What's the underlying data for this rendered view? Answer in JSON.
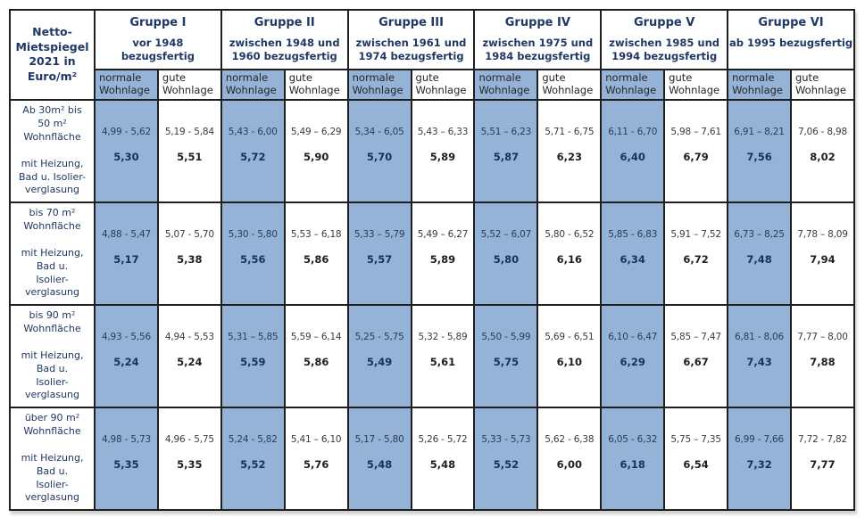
{
  "title": "Netto-\nMietspiegel\n2021 in\nEuro/m²",
  "colors": {
    "highlight_blue": "#95B3D7",
    "header_navy": "#1F3864",
    "border_black": "#1f1f1f",
    "background": "#ffffff"
  },
  "wohnlage_labels": {
    "normale": "normale\nWohnlage",
    "gute": "gute\nWohnlage"
  },
  "groups": [
    {
      "name": "Gruppe I",
      "period": "vor 1948 bezugsfertig"
    },
    {
      "name": "Gruppe II",
      "period": "zwischen 1948 und\n1960 bezugsfertig"
    },
    {
      "name": "Gruppe III",
      "period": "zwischen 1961 und\n1974 bezugsfertig"
    },
    {
      "name": "Gruppe IV",
      "period": "zwischen 1975 und\n1984 bezugsfertig"
    },
    {
      "name": "Gruppe V",
      "period": "zwischen 1985 und\n1994 bezugsfertig"
    },
    {
      "name": "Gruppe VI",
      "period": "ab 1995 bezugsfertig"
    }
  ],
  "rows": [
    {
      "label": "Ab 30m² bis\n50 m²\nWohnfläche\n\nmit Heizung,\nBad u. Isolier-\nverglasung",
      "cells": [
        {
          "range": "4,99 - 5,62",
          "mean": "5,30"
        },
        {
          "range": "5,19 - 5,84",
          "mean": "5,51"
        },
        {
          "range": "5,43 - 6,00",
          "mean": "5,72"
        },
        {
          "range": "5,49 – 6,29",
          "mean": "5,90"
        },
        {
          "range": "5,34 - 6,05",
          "mean": "5,70"
        },
        {
          "range": "5,43 – 6,33",
          "mean": "5,89"
        },
        {
          "range": "5,51 – 6,23",
          "mean": "5,87"
        },
        {
          "range": "5,71 - 6,75",
          "mean": "6,23"
        },
        {
          "range": "6,11 - 6,70",
          "mean": "6,40"
        },
        {
          "range": "5,98 – 7,61",
          "mean": "6,79"
        },
        {
          "range": "6,91 – 8,21",
          "mean": "7,56"
        },
        {
          "range": "7,06 - 8,98",
          "mean": "8,02"
        }
      ]
    },
    {
      "label": "bis 70 m²\nWohnfläche\n\nmit Heizung,\nBad u.\nIsolier-\nverglasung",
      "cells": [
        {
          "range": "4,88 - 5,47",
          "mean": "5,17"
        },
        {
          "range": "5,07 - 5,70",
          "mean": "5,38"
        },
        {
          "range": "5,30 - 5,80",
          "mean": "5,56"
        },
        {
          "range": "5,53 – 6,18",
          "mean": "5,86"
        },
        {
          "range": "5,33 – 5,79",
          "mean": "5,57"
        },
        {
          "range": "5,49 – 6,27",
          "mean": "5,89"
        },
        {
          "range": "5,52 – 6,07",
          "mean": "5,80"
        },
        {
          "range": "5,80 - 6,52",
          "mean": "6,16"
        },
        {
          "range": "5,85 - 6,83",
          "mean": "6,34"
        },
        {
          "range": "5,91 – 7,52",
          "mean": "6,72"
        },
        {
          "range": "6,73 – 8,25",
          "mean": "7,48"
        },
        {
          "range": "7,78 – 8,09",
          "mean": "7,94"
        }
      ]
    },
    {
      "label": "bis 90 m²\nWohnfläche\n\nmit Heizung,\nBad u.\nIsolier-\nverglasung",
      "cells": [
        {
          "range": "4,93 - 5,56",
          "mean": "5,24"
        },
        {
          "range": "4,94 - 5,53",
          "mean": "5,24"
        },
        {
          "range": "5,31 – 5,85",
          "mean": "5,59"
        },
        {
          "range": "5,59 – 6,14",
          "mean": "5,86"
        },
        {
          "range": "5,25 - 5,75",
          "mean": "5,49"
        },
        {
          "range": "5,32 - 5,89",
          "mean": "5,61"
        },
        {
          "range": "5,50 - 5,99",
          "mean": "5,75"
        },
        {
          "range": "5,69 - 6,51",
          "mean": "6,10"
        },
        {
          "range": "6,10 - 6,47",
          "mean": "6,29"
        },
        {
          "range": "5,85 – 7,47",
          "mean": "6,67"
        },
        {
          "range": "6,81 - 8,06",
          "mean": "7,43"
        },
        {
          "range": "7,77 – 8,00",
          "mean": "7,88"
        }
      ]
    },
    {
      "label": "über 90 m²\nWohnfläche\n\nmit Heizung,\nBad u.\nIsolier-\nverglasung",
      "cells": [
        {
          "range": "4,98 - 5,73",
          "mean": "5,35"
        },
        {
          "range": "4,96 - 5,75",
          "mean": "5,35"
        },
        {
          "range": "5,24 - 5,82",
          "mean": "5,52"
        },
        {
          "range": "5,41 – 6,10",
          "mean": "5,76"
        },
        {
          "range": "5,17 - 5,80",
          "mean": "5,48"
        },
        {
          "range": "5,26 - 5,72",
          "mean": "5,48"
        },
        {
          "range": "5,33 - 5,73",
          "mean": "5,52"
        },
        {
          "range": "5,62 - 6,38",
          "mean": "6,00"
        },
        {
          "range": "6,05 - 6,32",
          "mean": "6,18"
        },
        {
          "range": "5,75 – 7,35",
          "mean": "6,54"
        },
        {
          "range": "6,99 - 7,66",
          "mean": "7,32"
        },
        {
          "range": "7,72 - 7,82",
          "mean": "7,77"
        }
      ]
    }
  ],
  "chart_data": {
    "type": "table",
    "title": "Netto-Mietspiegel 2021 in Euro/m²",
    "column_groups": [
      "Gruppe I – vor 1948 bezugsfertig",
      "Gruppe II – zwischen 1948 und 1960 bezugsfertig",
      "Gruppe III – zwischen 1961 und 1974 bezugsfertig",
      "Gruppe IV – zwischen 1975 und 1984 bezugsfertig",
      "Gruppe V – zwischen 1985 und 1994 bezugsfertig",
      "Gruppe VI – ab 1995 bezugsfertig"
    ],
    "columns": [
      "Gruppe I normale Wohnlage",
      "Gruppe I gute Wohnlage",
      "Gruppe II normale Wohnlage",
      "Gruppe II gute Wohnlage",
      "Gruppe III normale Wohnlage",
      "Gruppe III gute Wohnlage",
      "Gruppe IV normale Wohnlage",
      "Gruppe IV gute Wohnlage",
      "Gruppe V normale Wohnlage",
      "Gruppe V gute Wohnlage",
      "Gruppe VI normale Wohnlage",
      "Gruppe VI gute Wohnlage"
    ],
    "row_labels": [
      "Ab 30m² bis 50 m² Wohnfläche mit Heizung, Bad u. Isolierverglasung",
      "bis 70 m² Wohnfläche mit Heizung, Bad u. Isolierverglasung",
      "bis 90 m² Wohnfläche mit Heizung, Bad u. Isolierverglasung",
      "über 90 m² Wohnfläche mit Heizung, Bad u. Isolierverglasung"
    ],
    "range_min": [
      [
        4.99,
        5.19,
        5.43,
        5.49,
        5.34,
        5.43,
        5.51,
        5.71,
        6.11,
        5.98,
        6.91,
        7.06
      ],
      [
        4.88,
        5.07,
        5.3,
        5.53,
        5.33,
        5.49,
        5.52,
        5.8,
        5.85,
        5.91,
        6.73,
        7.78
      ],
      [
        4.93,
        4.94,
        5.31,
        5.59,
        5.25,
        5.32,
        5.5,
        5.69,
        6.1,
        5.85,
        6.81,
        7.77
      ],
      [
        4.98,
        4.96,
        5.24,
        5.41,
        5.17,
        5.26,
        5.33,
        5.62,
        6.05,
        5.75,
        6.99,
        7.72
      ]
    ],
    "range_max": [
      [
        5.62,
        5.84,
        6.0,
        6.29,
        6.05,
        6.33,
        6.23,
        6.75,
        6.7,
        7.61,
        8.21,
        8.98
      ],
      [
        5.47,
        5.7,
        5.8,
        6.18,
        5.79,
        6.27,
        6.07,
        6.52,
        6.83,
        7.52,
        8.25,
        8.09
      ],
      [
        5.56,
        5.53,
        5.85,
        6.14,
        5.75,
        5.89,
        5.99,
        6.51,
        6.47,
        7.47,
        8.06,
        8.0
      ],
      [
        5.73,
        5.75,
        5.82,
        6.1,
        5.8,
        5.72,
        5.73,
        6.38,
        6.32,
        7.35,
        7.66,
        7.82
      ]
    ],
    "mean": [
      [
        5.3,
        5.51,
        5.72,
        5.9,
        5.7,
        5.89,
        5.87,
        6.23,
        6.4,
        6.79,
        7.56,
        8.02
      ],
      [
        5.17,
        5.38,
        5.56,
        5.86,
        5.57,
        5.89,
        5.8,
        6.16,
        6.34,
        6.72,
        7.48,
        7.94
      ],
      [
        5.24,
        5.24,
        5.59,
        5.86,
        5.49,
        5.61,
        5.75,
        6.1,
        6.29,
        6.67,
        7.43,
        7.88
      ],
      [
        5.35,
        5.35,
        5.52,
        5.76,
        5.48,
        5.48,
        5.52,
        6.0,
        6.18,
        6.54,
        7.32,
        7.77
      ]
    ]
  }
}
